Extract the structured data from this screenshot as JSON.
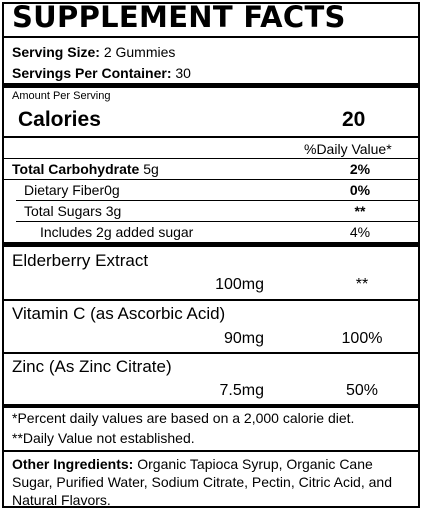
{
  "panel": {
    "title": "SUPPLEMENT FACTS",
    "serving_size_label": "Serving Size:",
    "serving_size_value": "2 Gummies",
    "servings_per_container_label": "Servings Per Container:",
    "servings_per_container_value": "30",
    "amount_per_serving": "Amount Per Serving",
    "calories_label": "Calories",
    "calories_value": "20",
    "daily_value_header": "%Daily Value*"
  },
  "nutrients": [
    {
      "label": "Total Carbohydrate",
      "amount": "5g",
      "dv": "2%"
    },
    {
      "label": "Dietary Fiber",
      "amount": "0g",
      "dv": "0%"
    },
    {
      "label": "Total Sugars",
      "amount": "3g",
      "dv": "**"
    },
    {
      "label": "Includes 2g added sugar",
      "amount": "",
      "dv": "4%"
    }
  ],
  "ingredients_active": [
    {
      "label": "Elderberry Extract",
      "amount": "100mg",
      "dv": "**"
    },
    {
      "label": "Vitamin C (as Ascorbic Acid)",
      "amount": "90mg",
      "dv": "100%"
    },
    {
      "label": "Zinc (As Zinc Citrate)",
      "amount": "7.5mg",
      "dv": "50%"
    }
  ],
  "footnotes": {
    "percent_note": "*Percent daily values are based on a 2,000 calorie diet.",
    "not_established": "**Daily Value not established."
  },
  "other_ingredients": {
    "label": "Other Ingredients:",
    "text": "Organic Tapioca Syrup, Organic Cane Sugar, Purified Water, Sodium Citrate, Pectin, Citric Acid, and Natural Flavors."
  }
}
